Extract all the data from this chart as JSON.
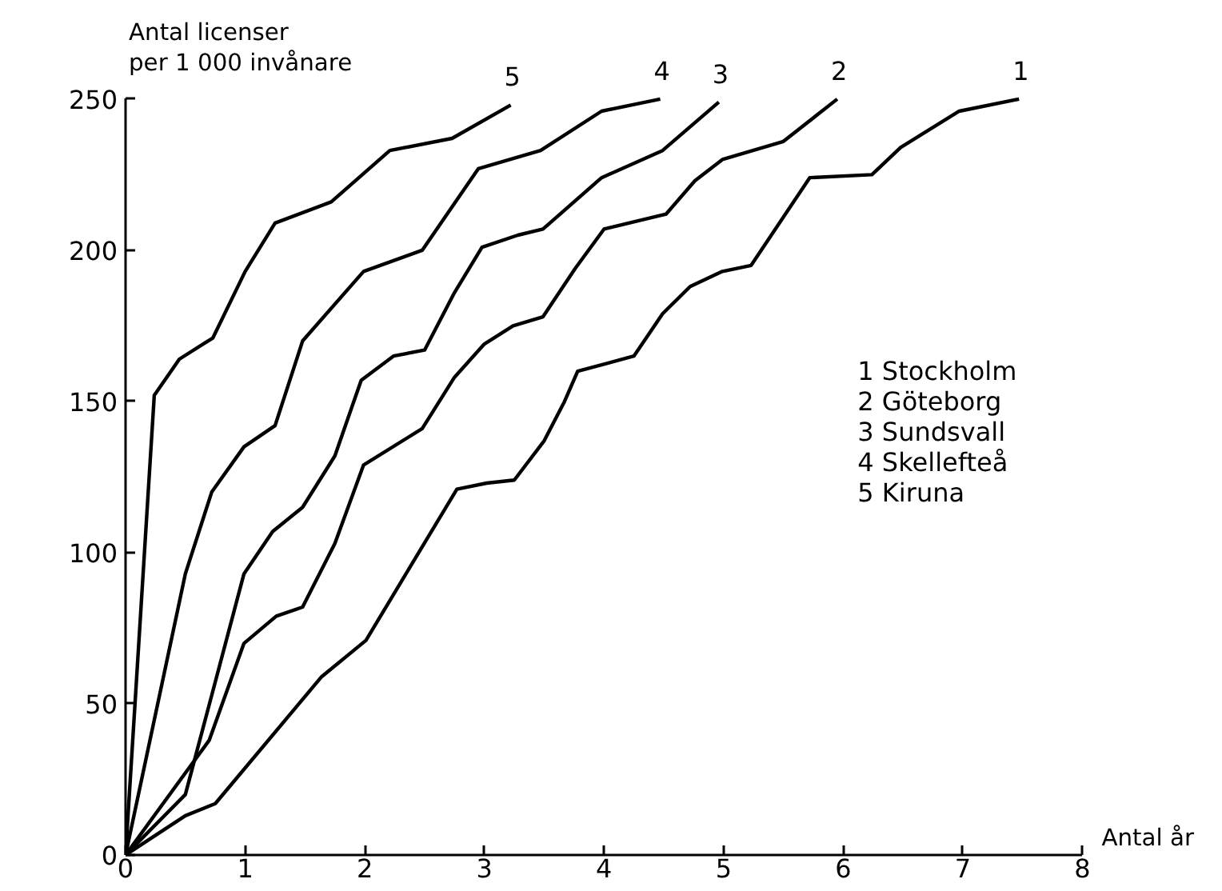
{
  "chart_data": {
    "type": "line",
    "xlabel": "Antal år",
    "ylabel": "Antal licenser\nper 1 000 invånare",
    "xlim": [
      0,
      8
    ],
    "xticks": [
      0,
      1,
      2,
      3,
      4,
      5,
      6,
      7,
      8
    ],
    "ylim": [
      0,
      250
    ],
    "yticks": [
      0,
      50,
      100,
      150,
      200,
      250
    ],
    "grid": false,
    "marker": "none",
    "line_style": "solid",
    "series": [
      {
        "color": "#000000",
        "x": [
          0,
          0.5,
          0.75,
          1.64,
          2.01,
          2.77,
          3.02,
          3.25,
          3.5,
          3.67,
          3.78,
          4.25,
          4.49,
          4.72,
          4.99,
          5.23,
          5.72,
          6.24,
          6.48,
          6.97,
          7.47
        ],
        "values": [
          0,
          13,
          17,
          59,
          71,
          121,
          123,
          124,
          137,
          150,
          160,
          165,
          179,
          188,
          193,
          195,
          224,
          225,
          234,
          246,
          250
        ]
      },
      {
        "color": "#000000",
        "x": [
          0,
          0.7,
          0.99,
          1.26,
          1.48,
          1.75,
          1.99,
          2.48,
          2.75,
          3.0,
          3.24,
          3.49,
          3.76,
          4.0,
          4.52,
          4.76,
          4.99,
          5.5,
          5.95
        ],
        "values": [
          0,
          38,
          70,
          79,
          82,
          103,
          129,
          141,
          158,
          169,
          175,
          178,
          194,
          207,
          212,
          223,
          230,
          236,
          250
        ]
      },
      {
        "color": "#000000",
        "x": [
          0,
          0.5,
          0.99,
          1.23,
          1.48,
          1.75,
          1.97,
          2.24,
          2.5,
          2.75,
          2.98,
          3.28,
          3.49,
          3.98,
          4.49,
          4.96
        ],
        "values": [
          0,
          20,
          93,
          107,
          115,
          132,
          157,
          165,
          167,
          186,
          201,
          205,
          207,
          224,
          233,
          249
        ]
      },
      {
        "color": "#000000",
        "x": [
          0,
          0.5,
          0.72,
          0.99,
          1.25,
          1.48,
          1.99,
          2.48,
          2.95,
          3.47,
          3.98,
          4.47
        ],
        "values": [
          0,
          93,
          120,
          135,
          142,
          170,
          193,
          200,
          227,
          233,
          246,
          250
        ]
      },
      {
        "color": "#000000",
        "x": [
          0,
          0.24,
          0.45,
          0.73,
          1.0,
          1.25,
          1.72,
          2.21,
          2.73,
          3.22
        ],
        "values": [
          0,
          152,
          164,
          171,
          193,
          209,
          216,
          233,
          237,
          248
        ]
      }
    ],
    "annotations": [
      "1 Stockholm",
      "2 Göteborg",
      "3 Sundsvall",
      "4 Skellefteå",
      "5 Kiruna",
      {
        "text": "1",
        "x": 7.47,
        "y": 250
      },
      {
        "text": "2",
        "x": 5.95,
        "y": 250
      },
      {
        "text": "3",
        "x": 4.96,
        "y": 249
      },
      {
        "text": "4",
        "x": 4.47,
        "y": 250
      },
      {
        "text": "5",
        "x": 3.22,
        "y": 248
      }
    ]
  }
}
